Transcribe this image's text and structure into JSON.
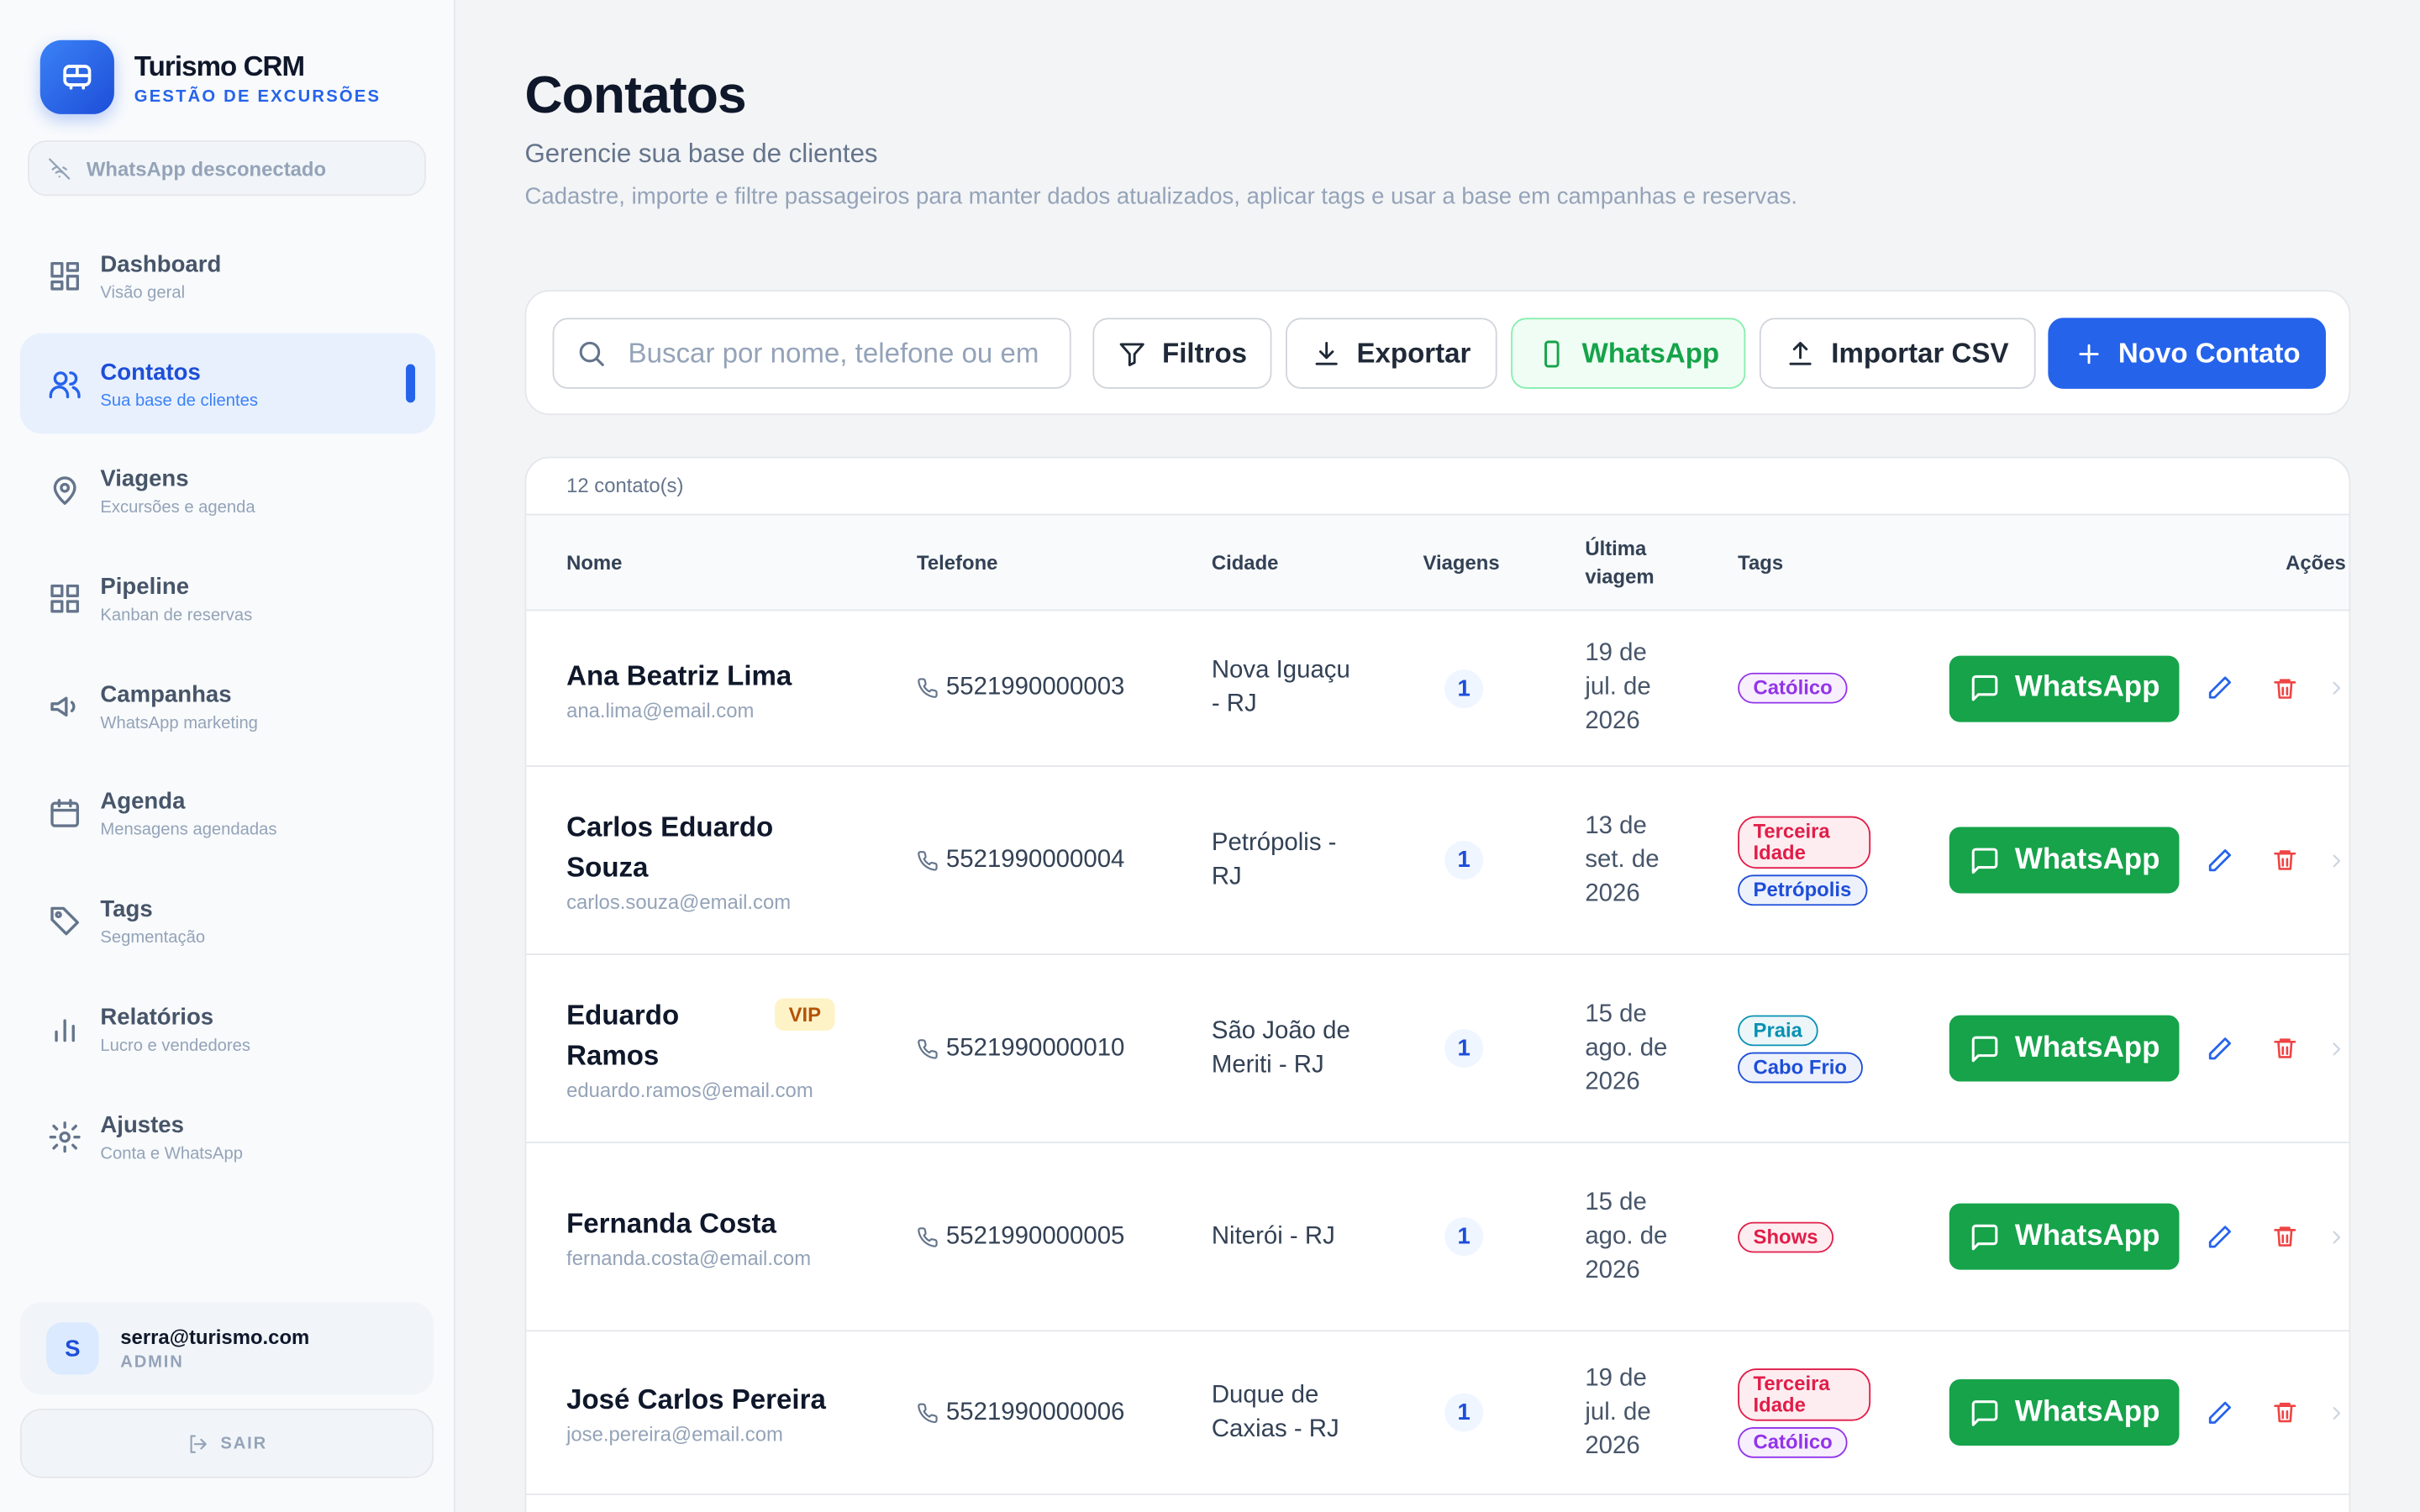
{
  "sidebar": {
    "brand": "Turismo CRM",
    "tagline": "GESTÃO DE EXCURSÕES",
    "whatsapp_status": "WhatsApp desconectado",
    "nav": [
      {
        "label": "Dashboard",
        "sub": "Visão geral"
      },
      {
        "label": "Contatos",
        "sub": "Sua base de clientes",
        "active": true
      },
      {
        "label": "Viagens",
        "sub": "Excursões e agenda"
      },
      {
        "label": "Pipeline",
        "sub": "Kanban de reservas"
      },
      {
        "label": "Campanhas",
        "sub": "WhatsApp marketing"
      },
      {
        "label": "Agenda",
        "sub": "Mensagens agendadas"
      },
      {
        "label": "Tags",
        "sub": "Segmentação"
      },
      {
        "label": "Relatórios",
        "sub": "Lucro e vendedores"
      },
      {
        "label": "Ajustes",
        "sub": "Conta e WhatsApp"
      }
    ],
    "user": {
      "initial": "S",
      "email": "serra@turismo.com",
      "role": "ADMIN"
    },
    "logout": "SAIR"
  },
  "header": {
    "title": "Contatos",
    "subtitle": "Gerencie sua base de clientes",
    "description": "Cadastre, importe e filtre passageiros para manter dados atualizados, aplicar tags e usar a base em campanhas e reservas."
  },
  "toolbar": {
    "search_placeholder": "Buscar por nome, telefone ou em",
    "buttons": [
      "Filtros",
      "Exportar",
      "WhatsApp",
      "Importar CSV",
      "Novo Contato"
    ]
  },
  "table": {
    "count": "12 contato(s)",
    "columns": [
      "Nome",
      "Telefone",
      "Cidade",
      "Viagens",
      "Última viagem",
      "Tags",
      "Ações"
    ],
    "rows": [
      {
        "name": "Ana Beatriz Lima",
        "email": "ana.lima@email.com",
        "phone": "5521990000003",
        "city": "Nova Iguaçu - RJ",
        "trips": 1,
        "last_trip": "19 de jul. de 2026",
        "tags": [
          {
            "label": "Católico",
            "color": "#9333ea"
          }
        ],
        "action": "WhatsApp"
      },
      {
        "name": "Carlos Eduardo Souza",
        "email": "carlos.souza@email.com",
        "phone": "5521990000004",
        "city": "Petrópolis - RJ",
        "trips": 1,
        "last_trip": "13 de set. de 2026",
        "tags": [
          {
            "label": "Terceira Idade",
            "color": "#e11d48"
          },
          {
            "label": "Petrópolis",
            "color": "#1d4ed8"
          }
        ],
        "action": "WhatsApp"
      },
      {
        "name": "Eduardo Ramos",
        "badge": "VIP",
        "email": "eduardo.ramos@email.com",
        "phone": "5521990000010",
        "city": "São João de Meriti - RJ",
        "trips": 1,
        "last_trip": "15 de ago. de 2026",
        "tags": [
          {
            "label": "Praia",
            "color": "#0891b2"
          },
          {
            "label": "Cabo Frio",
            "color": "#1d4ed8"
          }
        ],
        "action": "WhatsApp"
      },
      {
        "name": "Fernanda Costa",
        "email": "fernanda.costa@email.com",
        "phone": "5521990000005",
        "city": "Niterói - RJ",
        "trips": 1,
        "last_trip": "15 de ago. de 2026",
        "tags": [
          {
            "label": "Shows",
            "color": "#e11d48"
          }
        ],
        "action": "WhatsApp"
      },
      {
        "name": "José Carlos Pereira",
        "email": "jose.pereira@email.com",
        "phone": "5521990000006",
        "city": "Duque de Caxias - RJ",
        "trips": 1,
        "last_trip": "19 de jul. de 2026",
        "tags": [
          {
            "label": "Terceira Idade",
            "color": "#e11d48"
          },
          {
            "label": "Católico",
            "color": "#9333ea"
          }
        ],
        "action": "WhatsApp"
      }
    ]
  }
}
